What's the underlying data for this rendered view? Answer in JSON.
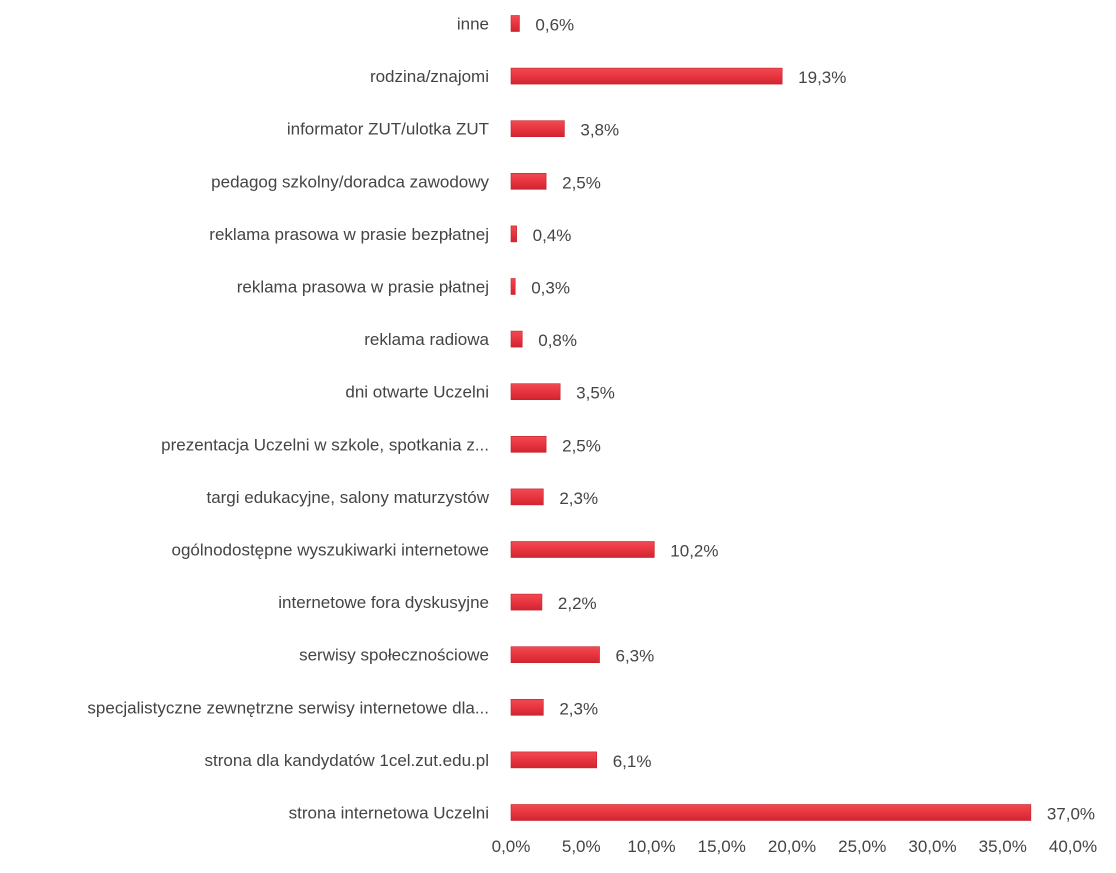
{
  "chart_data": {
    "type": "bar",
    "orientation": "horizontal",
    "categories": [
      "inne",
      "rodzina/znajomi",
      "informator ZUT/ulotka ZUT",
      "pedagog szkolny/doradca zawodowy",
      "reklama prasowa w prasie bezpłatnej",
      "reklama prasowa w prasie płatnej",
      "reklama radiowa",
      "dni otwarte Uczelni",
      "prezentacja Uczelni w szkole, spotkania z...",
      "targi edukacyjne, salony maturzystów",
      "ogólnodostępne wyszukiwarki internetowe",
      "internetowe fora dyskusyjne",
      "serwisy społecznościowe",
      "specjalistyczne zewnętrzne serwisy internetowe dla...",
      "strona dla kandydatów 1cel.zut.edu.pl",
      "strona internetowa Uczelni"
    ],
    "values": [
      0.6,
      19.3,
      3.8,
      2.5,
      0.4,
      0.3,
      0.8,
      3.5,
      2.5,
      2.3,
      10.2,
      2.2,
      6.3,
      2.3,
      6.1,
      37.0
    ],
    "value_labels": [
      "0,6%",
      "19,3%",
      "3,8%",
      "2,5%",
      "0,4%",
      "0,3%",
      "0,8%",
      "3,5%",
      "2,5%",
      "2,3%",
      "10,2%",
      "2,2%",
      "6,3%",
      "2,3%",
      "6,1%",
      "37,0%"
    ],
    "xlim": [
      0,
      40
    ],
    "x_ticks": [
      0,
      5,
      10,
      15,
      20,
      25,
      30,
      35,
      40
    ],
    "x_tick_labels": [
      "0,0%",
      "5,0%",
      "10,0%",
      "15,0%",
      "20,0%",
      "25,0%",
      "30,0%",
      "35,0%",
      "40,0%"
    ],
    "title": "",
    "xlabel": "",
    "ylabel": "",
    "grid": false,
    "legend": "none",
    "bar_color": "#e8353f",
    "bar_edge_color": "#c41e2a",
    "text_color": "#444444"
  }
}
